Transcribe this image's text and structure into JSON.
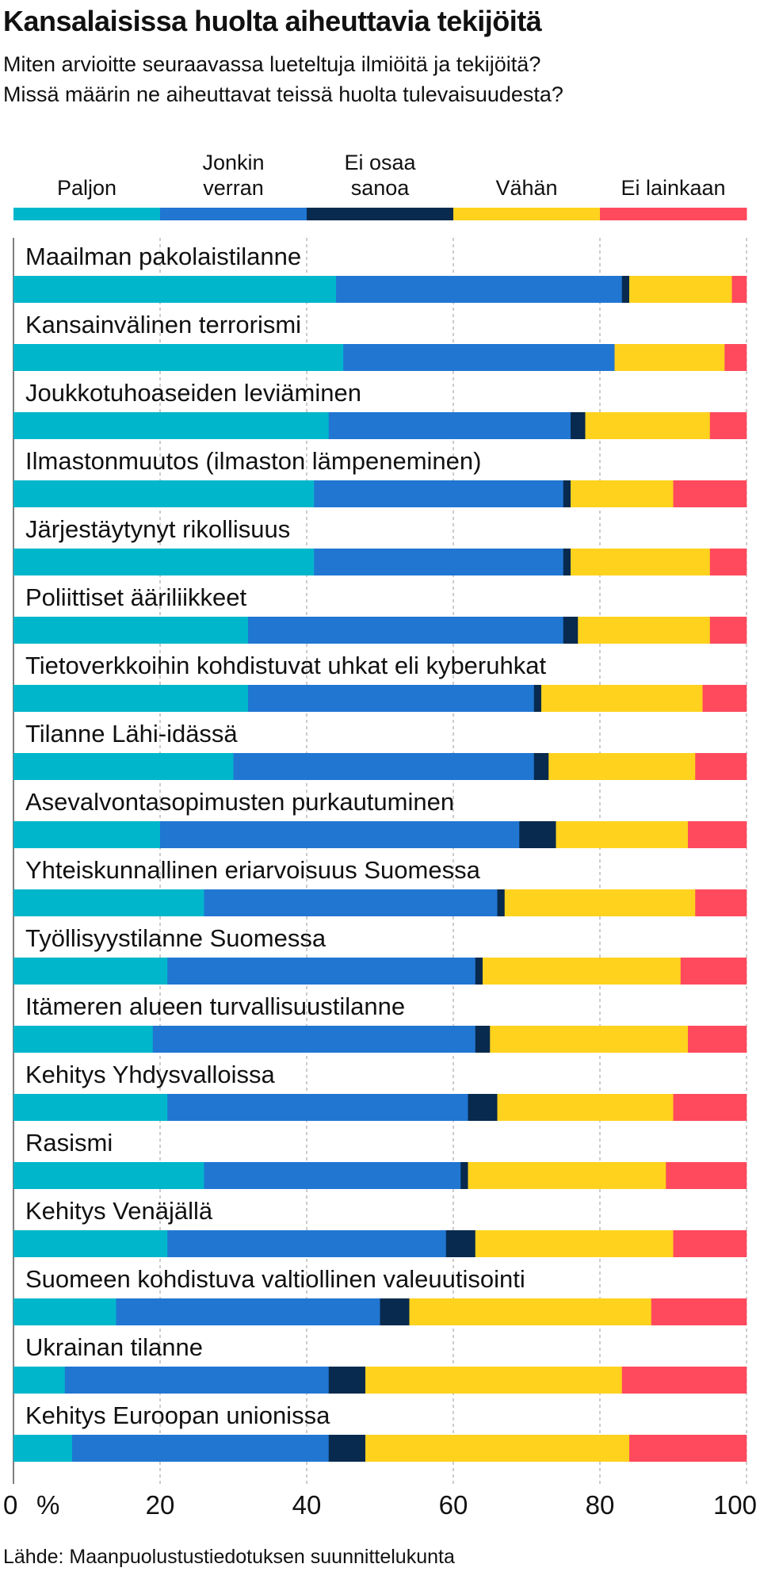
{
  "title": "Kansalaisissa huolta aiheuttavia tekijöitä",
  "subtitle": "Miten arvioitte seuraavassa lueteltuja ilmiöitä ja tekijöitä?\nMissä määrin ne aiheuttavat teissä huolta tulevaisuudesta?",
  "source": "Lähde: Maanpuolustustiedotuksen suunnittelukunta",
  "colors": {
    "paljon": "#00B6CB",
    "jonkin_verran": "#2176D2",
    "ei_osaa_sanoa": "#072A4E",
    "vahan": "#FFD21E",
    "ei_lainkaan": "#FF4A5D"
  },
  "chart_data": {
    "type": "bar",
    "orientation": "horizontal",
    "stacked": true,
    "legend_position": "top",
    "x_unit_label": "%",
    "xlim": [
      0,
      100
    ],
    "xticks": [
      "0",
      "20",
      "40",
      "60",
      "80",
      "100"
    ],
    "grid": "vertical dashed",
    "categories": [
      "Maailman pakolaistilanne",
      "Kansainvälinen terrorismi",
      "Joukkotuhoaseiden leviäminen",
      "Ilmastonmuutos (ilmaston lämpeneminen)",
      "Järjestäytynyt rikollisuus",
      "Poliittiset ääriliikkeet",
      "Tietoverkkoihin kohdistuvat uhkat eli kyberuhkat",
      "Tilanne Lähi-idässä",
      "Asevalvontasopimusten purkautuminen",
      "Yhteiskunnallinen eriarvoisuus Suomessa",
      "Työllisyystilanne Suomessa",
      "Itämeren alueen turvallisuustilanne",
      "Kehitys Yhdysvalloissa",
      "Rasismi",
      "Kehitys Venäjällä",
      "Suomeen kohdistuva valtiollinen valeuutisointi",
      "Ukrainan tilanne",
      "Kehitys Euroopan unionissa"
    ],
    "series": [
      {
        "name": "Paljon",
        "legend": "Paljon",
        "color_key": "paljon",
        "values": [
          44,
          45,
          43,
          41,
          41,
          32,
          32,
          30,
          20,
          26,
          21,
          19,
          21,
          26,
          21,
          14,
          7,
          8
        ]
      },
      {
        "name": "Jonkin verran",
        "legend": "Jonkin\nverran",
        "color_key": "jonkin_verran",
        "values": [
          39,
          37,
          33,
          34,
          34,
          43,
          39,
          41,
          49,
          40,
          42,
          44,
          41,
          35,
          38,
          36,
          36,
          35
        ]
      },
      {
        "name": "Ei osaa sanoa",
        "legend": "Ei osaa\nsanoa",
        "color_key": "ei_osaa_sanoa",
        "values": [
          1,
          0,
          2,
          1,
          1,
          2,
          1,
          2,
          5,
          1,
          1,
          2,
          4,
          1,
          4,
          4,
          5,
          5
        ]
      },
      {
        "name": "Vähän",
        "legend": "Vähän",
        "color_key": "vahan",
        "values": [
          14,
          15,
          17,
          14,
          19,
          18,
          22,
          20,
          18,
          26,
          27,
          27,
          24,
          27,
          27,
          33,
          35,
          36
        ]
      },
      {
        "name": "Ei lainkaan",
        "legend": "Ei lainkaan",
        "color_key": "ei_lainkaan",
        "values": [
          2,
          3,
          5,
          10,
          5,
          5,
          6,
          7,
          8,
          7,
          9,
          8,
          10,
          11,
          10,
          13,
          17,
          16
        ]
      }
    ]
  }
}
